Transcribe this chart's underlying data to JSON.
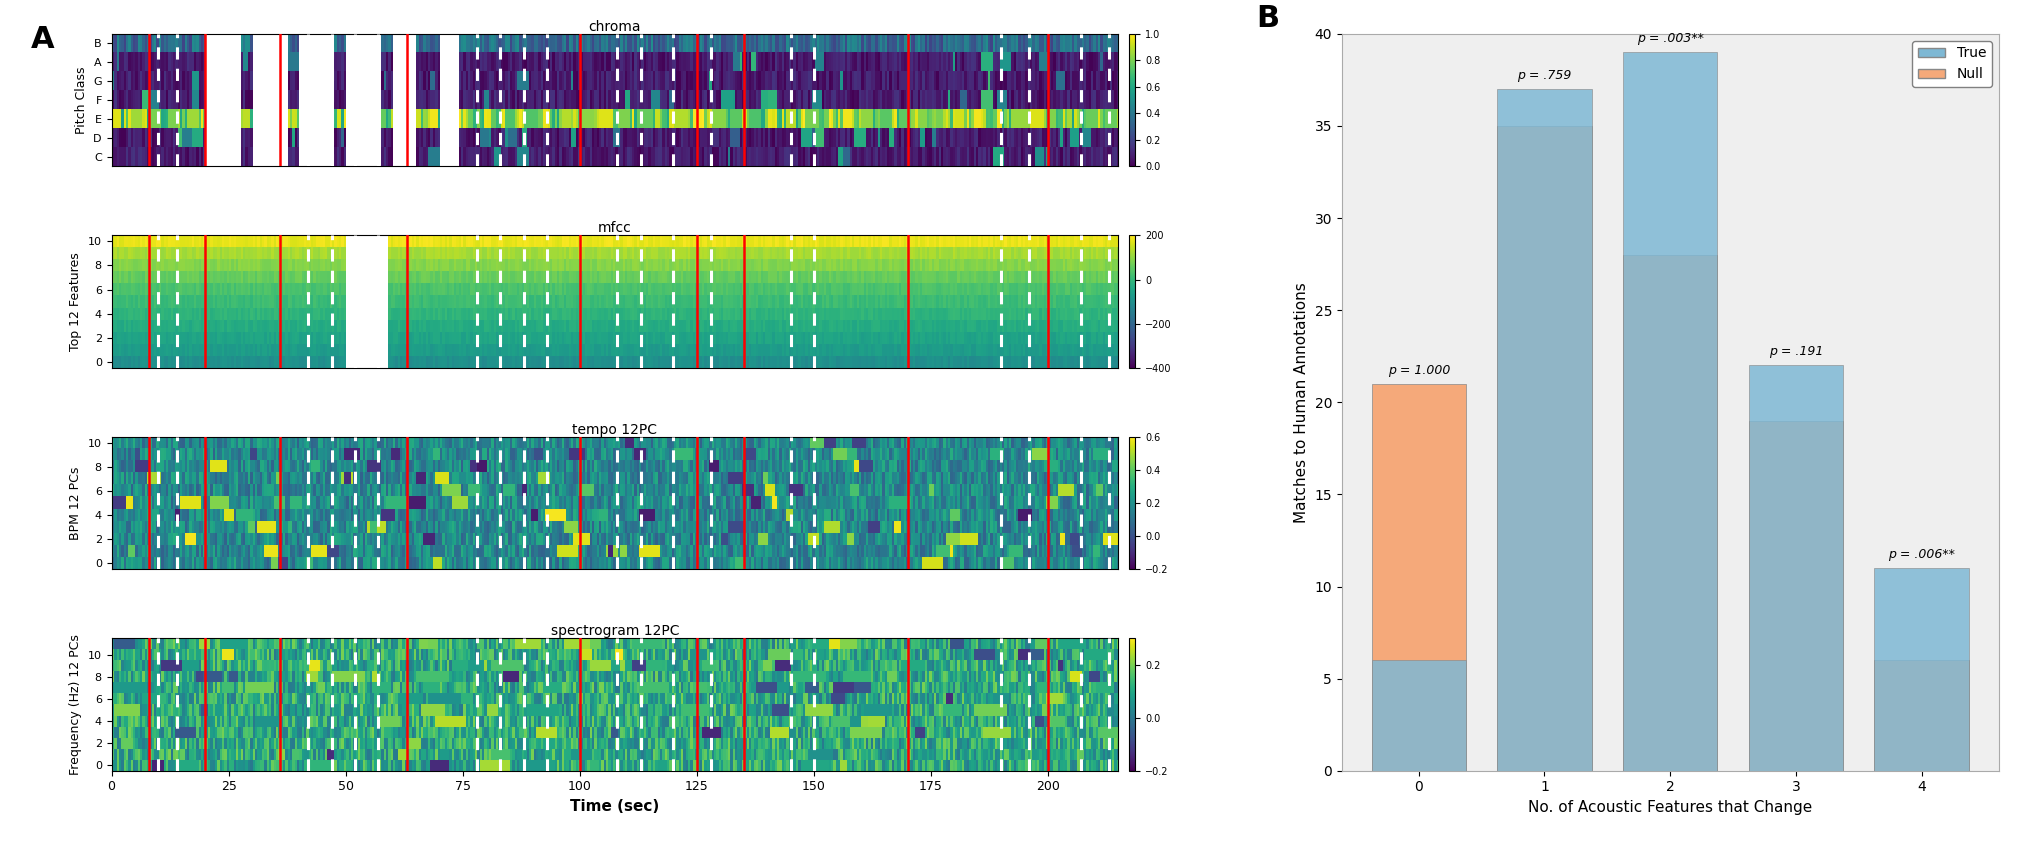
{
  "panel_B": {
    "categories": [
      0,
      1,
      2,
      3,
      4
    ],
    "true_values": [
      6,
      37,
      39,
      22,
      11
    ],
    "null_values": [
      21,
      35,
      28,
      19,
      6
    ],
    "true_color": "#7eb8d4",
    "null_color": "#f5a97a",
    "p_labels": [
      "p = 1.000",
      "p = .759",
      "p = .003**",
      "p = .191",
      "p = .006**"
    ],
    "ylabel": "Matches to Human Annotations",
    "xlabel": "No. of Acoustic Features that Change",
    "ylim": [
      0,
      40
    ],
    "yticks": [
      0,
      5,
      10,
      15,
      20,
      25,
      30,
      35,
      40
    ],
    "legend_labels": [
      "True",
      "Null"
    ]
  },
  "red_lines_sec": [
    8,
    20,
    36,
    63,
    100,
    125,
    135,
    170,
    200
  ],
  "white_dashed_sec": [
    10,
    14,
    42,
    47,
    52,
    57,
    78,
    83,
    88,
    93,
    108,
    113,
    120,
    128,
    145,
    150,
    190,
    196,
    207,
    213
  ],
  "time_max": 215,
  "time_ticks": [
    0,
    25,
    50,
    75,
    100,
    125,
    150,
    175,
    200
  ],
  "chroma_yticks": [
    "C",
    "D",
    "E",
    "F",
    "G",
    "A",
    "B"
  ],
  "chroma_title": "chroma",
  "mfcc_title": "mfcc",
  "tempo_title": "tempo 12PC",
  "spectrogram_title": "spectrogram 12PC",
  "chroma_ylabel": "Pitch Class",
  "mfcc_ylabel": "Top 12 Features",
  "tempo_ylabel": "BPM 12 PCs",
  "spectrogram_ylabel": "Frequency (Hz) 12 PCs",
  "time_xlabel": "Time (sec)",
  "label_A": "A",
  "label_B": "B"
}
